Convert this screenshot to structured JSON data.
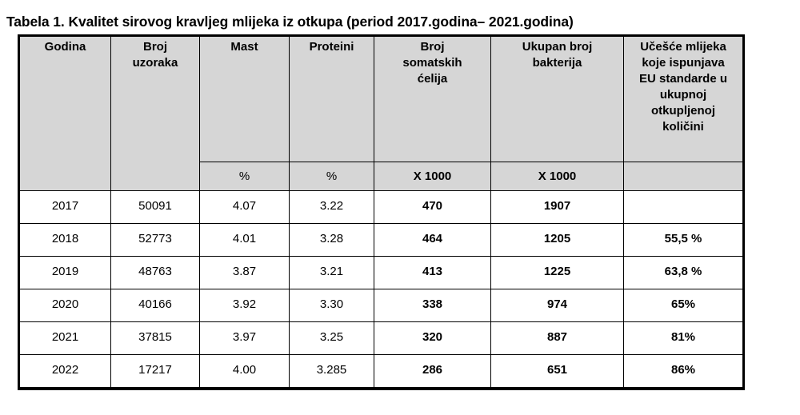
{
  "title": "Tabela 1. Kvalitet sirovog kravljeg mlijeka iz otkupa (period 2017.godina– 2021.godina)",
  "headers": [
    "Godina",
    "Broj\nuzoraka",
    "Mast",
    "Proteini",
    "Broj\nsomatskih\nćelija",
    "Ukupan broj\nbakterija",
    "Učešće mlijeka\nkoje ispunjava\nEU standarde u\nukupnoj\notkupljenoj\nkoličini"
  ],
  "units": [
    "",
    "",
    "%",
    "%",
    "X 1000",
    "X 1000",
    ""
  ],
  "rows": [
    [
      "2017",
      "50091",
      "4.07",
      "3.22",
      "470",
      "1907",
      ""
    ],
    [
      "2018",
      "52773",
      "4.01",
      "3.28",
      "464",
      "1205",
      "55,5 %"
    ],
    [
      "2019",
      "48763",
      "3.87",
      "3.21",
      "413",
      "1225",
      "63,8 %"
    ],
    [
      "2020",
      "40166",
      "3.92",
      "3.30",
      "338",
      "974",
      "65%"
    ],
    [
      "2021",
      "37815",
      "3.97",
      "3.25",
      "320",
      "887",
      "81%"
    ],
    [
      "2022",
      "17217",
      "4.00",
      "3.285",
      "286",
      "651",
      "86%"
    ]
  ]
}
